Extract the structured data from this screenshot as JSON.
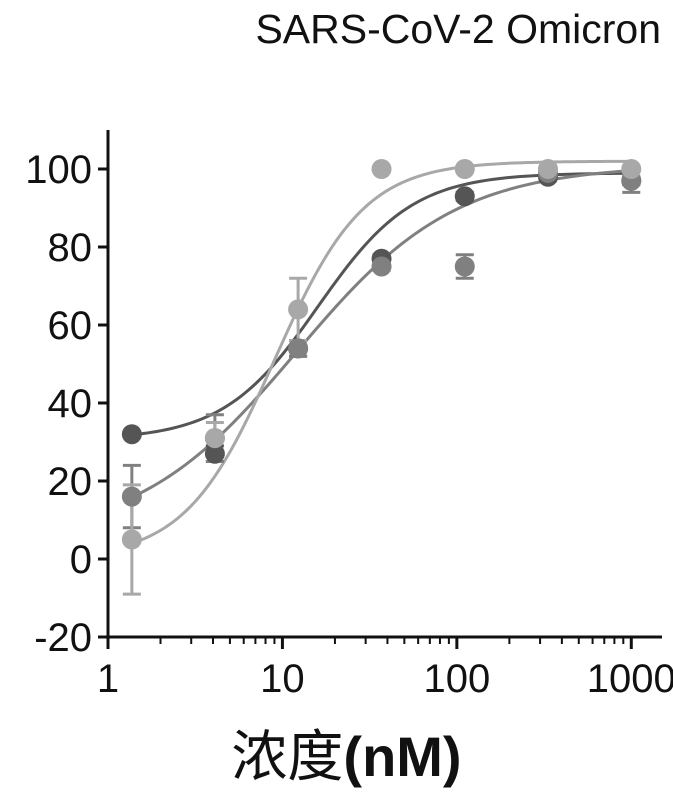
{
  "chart_data": {
    "type": "scatter",
    "title": "SARS-CoV-2 Omicron",
    "xlabel_main": "浓度",
    "xlabel_unit": "(nM)",
    "ylabel": "",
    "xscale": "log",
    "xlim": [
      1,
      1500
    ],
    "ylim": [
      -20,
      110
    ],
    "xticks": [
      1,
      10,
      100,
      1000
    ],
    "xtick_labels": [
      "1",
      "10",
      "100",
      "1000"
    ],
    "yticks": [
      -20,
      0,
      20,
      40,
      60,
      80,
      100
    ],
    "ytick_labels": [
      "-20",
      "0",
      "20",
      "40",
      "60",
      "80",
      "100"
    ],
    "grid": false,
    "legend": "none",
    "series": [
      {
        "color": "#555555",
        "points": [
          {
            "x": 1.37,
            "y": 32,
            "err": 0
          },
          {
            "x": 4.1,
            "y": 27,
            "err": 2
          },
          {
            "x": 12.3,
            "y": 54,
            "err": 2
          },
          {
            "x": 37,
            "y": 77,
            "err": 1
          },
          {
            "x": 111,
            "y": 93,
            "err": 1
          },
          {
            "x": 333,
            "y": 98,
            "err": 1
          },
          {
            "x": 1000,
            "y": 97,
            "err": 1
          }
        ],
        "fit": {
          "bottom": 30.5,
          "top": 99,
          "ec50": 16,
          "hill": 1.6
        }
      },
      {
        "color": "#808080",
        "points": [
          {
            "x": 1.37,
            "y": 16,
            "err": 8
          },
          {
            "x": 4.1,
            "y": 31,
            "err": 6
          },
          {
            "x": 12.3,
            "y": 54,
            "err": 2
          },
          {
            "x": 37,
            "y": 75,
            "err": 1
          },
          {
            "x": 111,
            "y": 75,
            "err": 3
          },
          {
            "x": 333,
            "y": 99,
            "err": 1
          },
          {
            "x": 1000,
            "y": 97,
            "err": 3
          }
        ],
        "fit": {
          "bottom": 5,
          "top": 101,
          "ec50": 12,
          "hill": 0.95
        }
      },
      {
        "color": "#a8a8a8",
        "points": [
          {
            "x": 1.37,
            "y": 5,
            "err": 14
          },
          {
            "x": 4.1,
            "y": 31,
            "err": 4
          },
          {
            "x": 12.3,
            "y": 64,
            "err": 8
          },
          {
            "x": 37,
            "y": 100,
            "err": 0
          },
          {
            "x": 111,
            "y": 100,
            "err": 0
          },
          {
            "x": 333,
            "y": 100,
            "err": 0
          },
          {
            "x": 1000,
            "y": 100,
            "err": 0
          }
        ],
        "fit": {
          "bottom": 0,
          "top": 102,
          "ec50": 9,
          "hill": 1.7
        }
      }
    ]
  }
}
